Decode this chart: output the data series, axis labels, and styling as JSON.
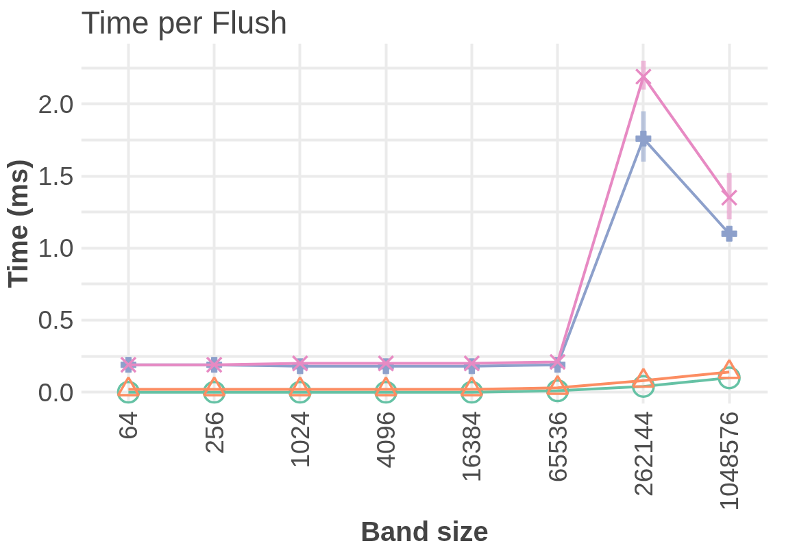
{
  "chart_data": {
    "type": "line",
    "title": "Time per Flush",
    "xlabel": "Band size",
    "ylabel": "Time (ms)",
    "categories": [
      "64",
      "256",
      "1024",
      "4096",
      "16384",
      "65536",
      "262144",
      "1048576"
    ],
    "series": [
      {
        "color": "#66c2a5",
        "marker": "circle",
        "values": [
          0,
          0,
          0,
          0,
          0,
          0.01,
          0.04,
          0.1
        ]
      },
      {
        "color": "#fc8d62",
        "marker": "triangle",
        "values": [
          0.02,
          0.02,
          0.02,
          0.02,
          0.02,
          0.03,
          0.08,
          0.14
        ]
      },
      {
        "color": "#8da0cb",
        "marker": "cross",
        "values": [
          0.19,
          0.19,
          0.18,
          0.18,
          0.18,
          0.19,
          1.76,
          1.1
        ],
        "errors": [
          null,
          null,
          null,
          null,
          null,
          null,
          [
            1.6,
            1.95
          ],
          null
        ]
      },
      {
        "color": "#e78ac3",
        "marker": "x",
        "values": [
          0.19,
          0.19,
          0.2,
          0.2,
          0.2,
          0.21,
          2.19,
          1.35
        ],
        "errors": [
          null,
          null,
          null,
          null,
          null,
          null,
          [
            2.1,
            2.3
          ],
          [
            1.2,
            1.52
          ]
        ]
      }
    ],
    "ylim": [
      -0.08,
      2.42
    ],
    "yticks": [
      {
        "value": 0,
        "label": "0.0"
      },
      {
        "value": 0.25,
        "label": null
      },
      0.5,
      {
        "value": 0.75,
        "label": null
      },
      {
        "value": 1,
        "label": "1.0"
      },
      {
        "value": 1.25,
        "label": null
      },
      1.5,
      {
        "value": 1.75,
        "label": null
      },
      {
        "value": 2,
        "label": "2.0"
      },
      {
        "value": 2.25,
        "label": null
      }
    ],
    "grid": true,
    "line_style": "solid"
  }
}
